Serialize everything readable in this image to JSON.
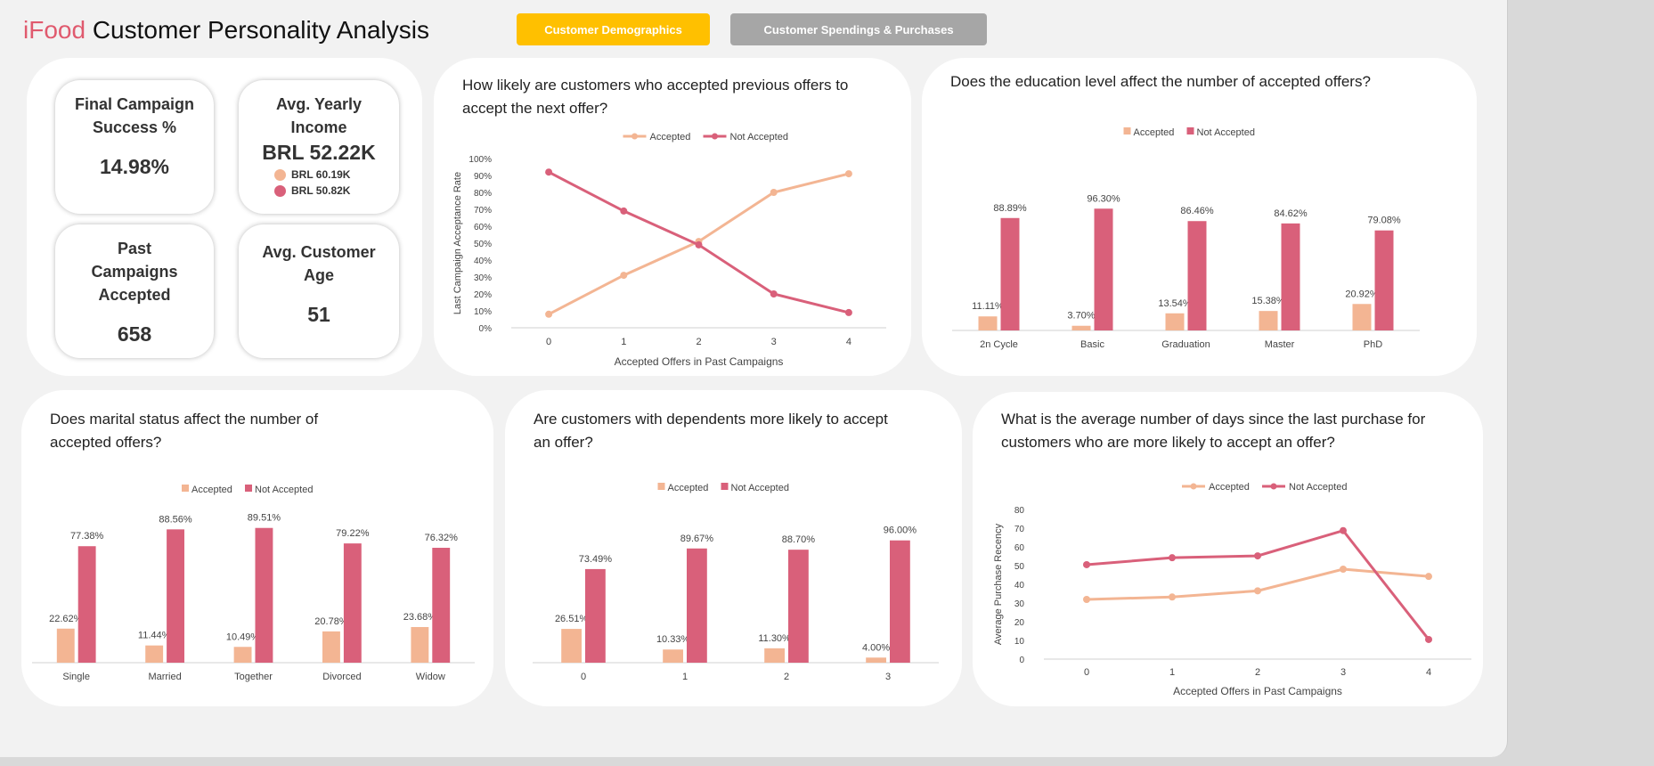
{
  "header": {
    "brand": "iFood",
    "title": " Customer Personality Analysis",
    "nav": [
      {
        "label": "Customer Demographics",
        "color": "#ffc000",
        "active": true
      },
      {
        "label": "Customer Spendings & Purchases",
        "color": "#a6a6a6",
        "active": false
      }
    ]
  },
  "colors": {
    "accepted": "#F3B593",
    "not_accepted": "#D9607A",
    "brand": "#E05A6E"
  },
  "kpis": {
    "final_campaign": {
      "label": "Final Campaign Success %",
      "value": "14.98%"
    },
    "income": {
      "label": "Avg. Yearly Income",
      "value": "BRL 52.22K",
      "legend": [
        {
          "value": "BRL 60.19K",
          "color": "#F3B593"
        },
        {
          "value": "BRL 50.82K",
          "color": "#D9607A"
        }
      ]
    },
    "past_campaigns": {
      "label": "Past Campaigns Accepted",
      "value": "658"
    },
    "age": {
      "label": "Avg. Customer Age",
      "value": "51"
    }
  },
  "chart_data": [
    {
      "id": "c1",
      "type": "line",
      "title": "How likely are customers who accepted previous offers to accept the next offer?",
      "xlabel": "Accepted Offers in Past Campaigns",
      "ylabel": "Last Campaign Acceptance Rate",
      "categories": [
        "0",
        "1",
        "2",
        "3",
        "4"
      ],
      "ylim": [
        0,
        100
      ],
      "yticks": [
        0,
        10,
        20,
        30,
        40,
        50,
        60,
        70,
        80,
        90,
        100
      ],
      "ytick_suffix": "%",
      "legend": "top",
      "series": [
        {
          "name": "Accepted",
          "values": [
            8,
            31,
            51,
            80,
            91
          ]
        },
        {
          "name": "Not Accepted",
          "values": [
            92,
            69,
            49,
            20,
            9
          ]
        }
      ]
    },
    {
      "id": "c2",
      "type": "bar",
      "title": "Does the education level affect the number of accepted offers?",
      "categories": [
        "2n Cycle",
        "Basic",
        "Graduation",
        "Master",
        "PhD"
      ],
      "legend": "top",
      "series": [
        {
          "name": "Accepted",
          "values": [
            11.11,
            3.7,
            13.54,
            15.38,
            20.92
          ],
          "labels": [
            "11.11%",
            "3.70%",
            "13.54%",
            "15.38%",
            "20.92%"
          ]
        },
        {
          "name": "Not Accepted",
          "values": [
            88.89,
            96.3,
            86.46,
            84.62,
            79.08
          ],
          "labels": [
            "88.89%",
            "96.30%",
            "86.46%",
            "84.62%",
            "79.08%"
          ]
        }
      ]
    },
    {
      "id": "c3",
      "type": "bar",
      "title": "Does marital status affect the number of accepted offers?",
      "categories": [
        "Single",
        "Married",
        "Together",
        "Divorced",
        "Widow"
      ],
      "legend": "top",
      "series": [
        {
          "name": "Accepted",
          "values": [
            22.62,
            11.44,
            10.49,
            20.78,
            23.68
          ],
          "labels": [
            "22.62%",
            "11.44%",
            "10.49%",
            "20.78%",
            "23.68%"
          ]
        },
        {
          "name": "Not Accepted",
          "values": [
            77.38,
            88.56,
            89.51,
            79.22,
            76.32
          ],
          "labels": [
            "77.38%",
            "88.56%",
            "89.51%",
            "79.22%",
            "76.32%"
          ]
        }
      ]
    },
    {
      "id": "c4",
      "type": "bar",
      "title": "Are customers with dependents more likely to accept an offer?",
      "categories": [
        "0",
        "1",
        "2",
        "3"
      ],
      "legend": "top",
      "series": [
        {
          "name": "Accepted",
          "values": [
            26.51,
            10.33,
            11.3,
            4.0
          ],
          "labels": [
            "26.51%",
            "10.33%",
            "11.30%",
            "4.00%"
          ]
        },
        {
          "name": "Not Accepted",
          "values": [
            73.49,
            89.67,
            88.7,
            96.0
          ],
          "labels": [
            "73.49%",
            "89.67%",
            "88.70%",
            "96.00%"
          ]
        }
      ]
    },
    {
      "id": "c5",
      "type": "line",
      "title": "What is the average number of days since the last purchase for customers who are more likely to accept an offer?",
      "xlabel": "Accepted Offers in Past Campaigns",
      "ylabel": "Average Purchase Recency",
      "categories": [
        "0",
        "1",
        "2",
        "3",
        "4"
      ],
      "ylim": [
        0,
        80
      ],
      "yticks": [
        0,
        10,
        20,
        30,
        40,
        50,
        60,
        70,
        80
      ],
      "ytick_suffix": "",
      "legend": "top",
      "series": [
        {
          "name": "Accepted",
          "values": [
            31.9,
            33.2,
            36.5,
            48.1,
            44.2
          ]
        },
        {
          "name": "Not Accepted",
          "values": [
            50.5,
            54.2,
            55.2,
            68.7,
            10.5
          ]
        }
      ]
    }
  ]
}
